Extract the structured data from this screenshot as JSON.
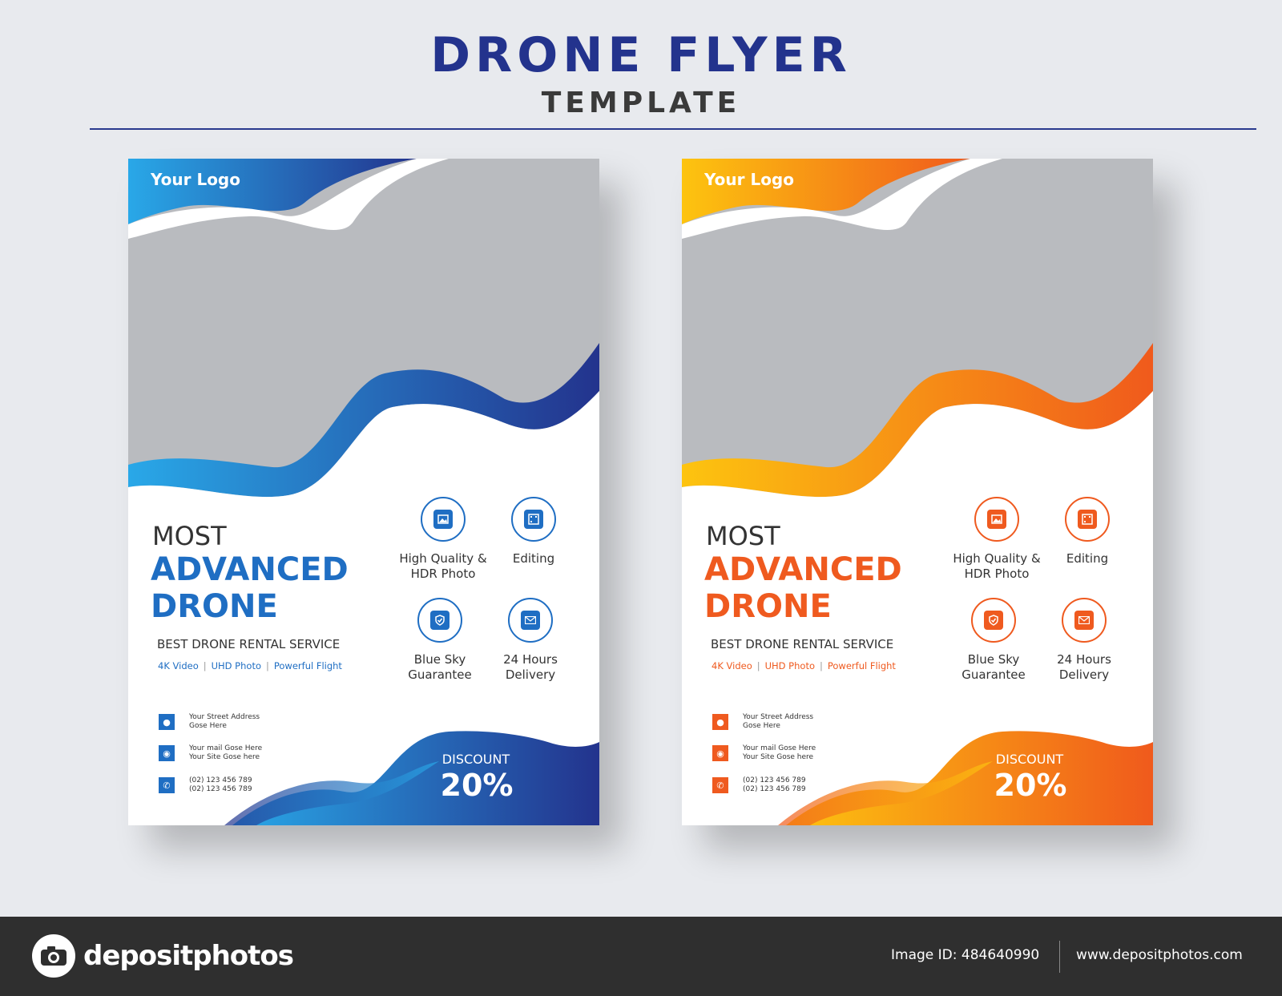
{
  "header": {
    "title": "DRONE FLYER",
    "subtitle": "TEMPLATE"
  },
  "flyers": [
    {
      "theme": "blue",
      "colors": {
        "accent": "#1f6ec3",
        "dark": "#23338d",
        "light": "#29a8e8"
      },
      "logo": "Your Logo",
      "headline_top": "MOST",
      "headline_main": "ADVANCED DRONE",
      "tagline": "BEST DRONE RENTAL SERVICE",
      "features": [
        "4K Video",
        "UHD Photo",
        "Powerful Flight"
      ],
      "feature_separator": "|",
      "services": [
        {
          "label": "High Quality & HDR Photo",
          "icon": "image-icon"
        },
        {
          "label": "Editing",
          "icon": "film-edit-icon"
        },
        {
          "label": "Blue Sky Guarantee",
          "icon": "shield-check-icon"
        },
        {
          "label": "24 Hours Delivery",
          "icon": "envelope-icon"
        }
      ],
      "contacts": [
        {
          "icon": "location-pin-icon",
          "lines": [
            "Your Street Address",
            "Gose Here"
          ]
        },
        {
          "icon": "globe-icon",
          "lines": [
            "Your mail Gose Here",
            "Your Site Gose here"
          ]
        },
        {
          "icon": "phone-icon",
          "lines": [
            "(02) 123 456 789",
            "(02) 123 456 789"
          ]
        }
      ],
      "discount_label": "DISCOUNT",
      "discount_value": "20%"
    },
    {
      "theme": "orange",
      "colors": {
        "accent": "#ef5a1f",
        "dark": "#f05a1c",
        "light": "#fdc40f"
      },
      "logo": "Your Logo",
      "headline_top": "MOST",
      "headline_main": "ADVANCED DRONE",
      "tagline": "BEST DRONE RENTAL SERVICE",
      "features": [
        "4K Video",
        "UHD Photo",
        "Powerful Flight"
      ],
      "feature_separator": "|",
      "services": [
        {
          "label": "High Quality & HDR Photo",
          "icon": "image-icon"
        },
        {
          "label": "Editing",
          "icon": "film-edit-icon"
        },
        {
          "label": "Blue Sky Guarantee",
          "icon": "shield-check-icon"
        },
        {
          "label": "24 Hours Delivery",
          "icon": "envelope-icon"
        }
      ],
      "contacts": [
        {
          "icon": "location-pin-icon",
          "lines": [
            "Your Street Address",
            "Gose Here"
          ]
        },
        {
          "icon": "globe-icon",
          "lines": [
            "Your mail Gose Here",
            "Your Site Gose here"
          ]
        },
        {
          "icon": "phone-icon",
          "lines": [
            "(02) 123 456 789",
            "(02) 123 456 789"
          ]
        }
      ],
      "discount_label": "DISCOUNT",
      "discount_value": "20%"
    }
  ],
  "footer": {
    "brand": "depositphotos",
    "image_id": "Image ID: 484640990",
    "site": "www.depositphotos.com"
  }
}
